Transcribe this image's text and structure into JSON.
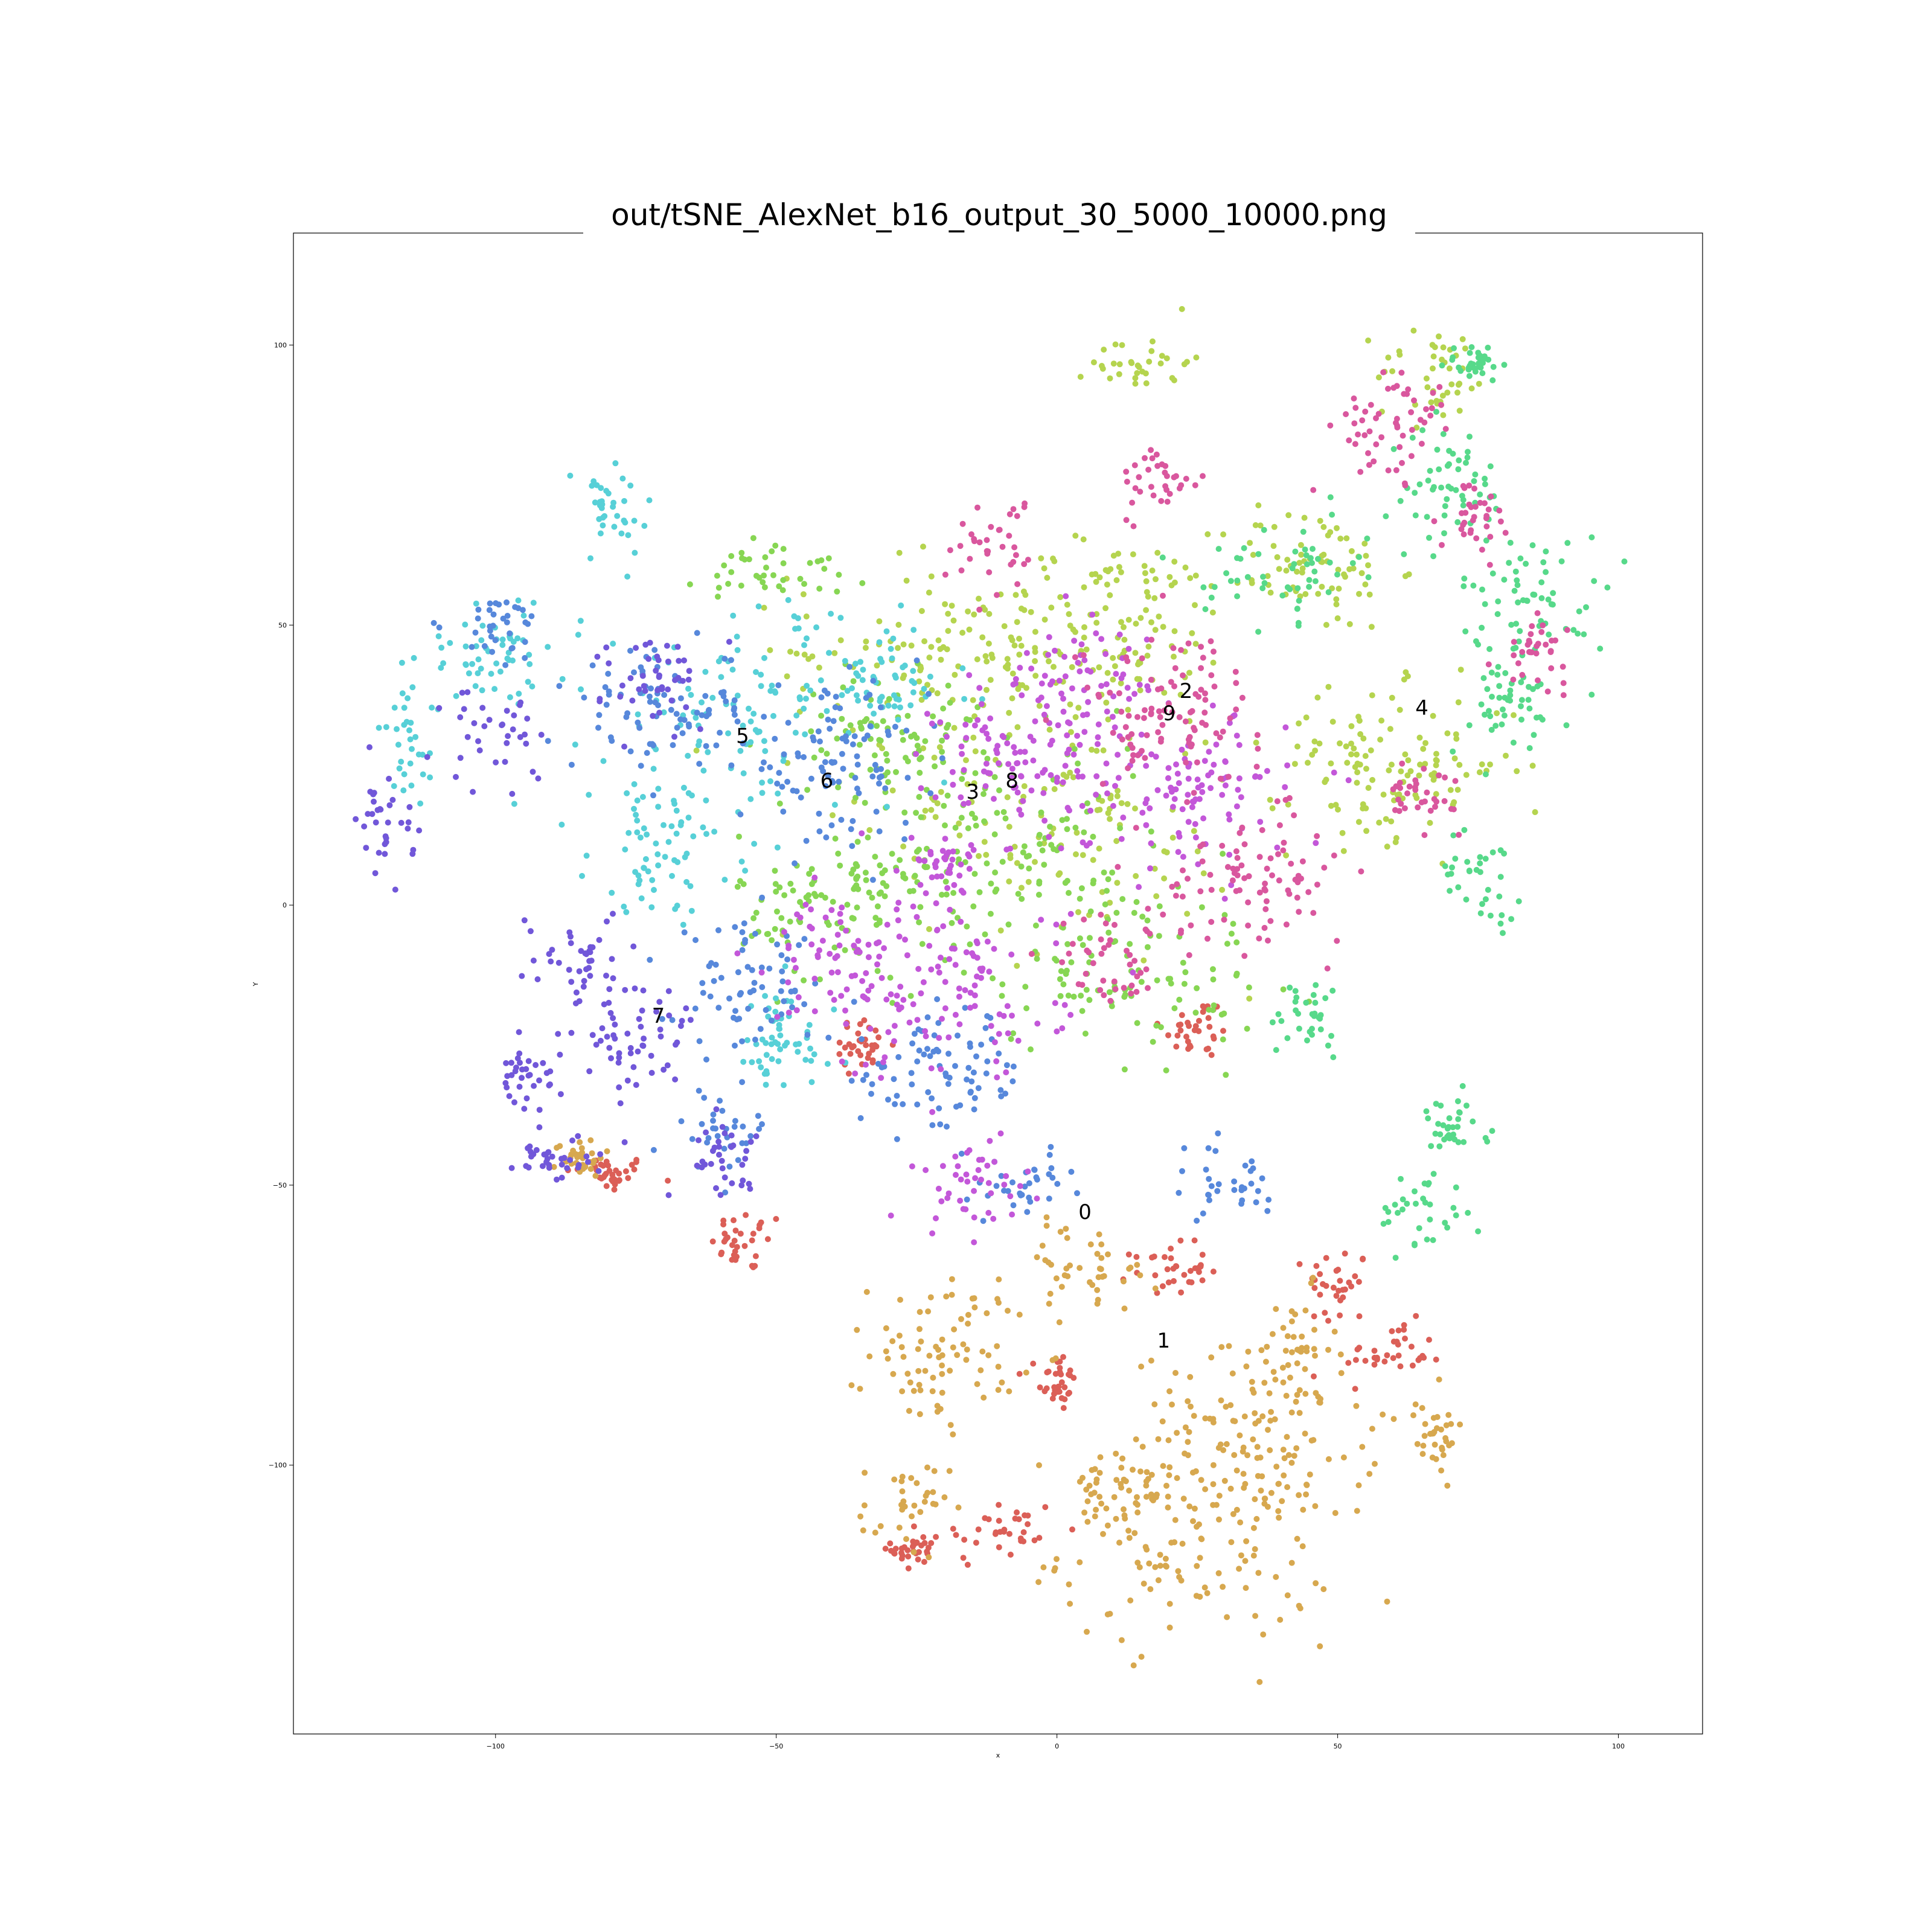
{
  "chart_data": {
    "type": "scatter",
    "title": "out/tSNE_AlexNet_b16_output_30_5000_10000.png",
    "xlabel": "x",
    "ylabel": "Y",
    "xlim": [
      -136,
      115
    ],
    "ylim": [
      -148,
      120
    ],
    "xticks": [
      -100,
      -50,
      0,
      50,
      100
    ],
    "yticks": [
      -100,
      -50,
      0,
      50,
      100
    ],
    "xtick_labels": [
      "−100",
      "−50",
      "0",
      "50",
      "100"
    ],
    "ytick_labels": [
      "−100",
      "−50",
      "0",
      "50",
      "100"
    ],
    "grid": false,
    "legend": "none",
    "classes": [
      {
        "name": "0",
        "color": "#db5f57",
        "label_pos": [
          5,
          -55
        ],
        "clusters": [
          [
            -80,
            -48,
            7,
            3
          ],
          [
            -55,
            -60,
            6,
            5
          ],
          [
            0,
            -85,
            3,
            5
          ],
          [
            -10,
            -112,
            10,
            6
          ],
          [
            25,
            -22,
            6,
            5
          ],
          [
            50,
            -68,
            5,
            7
          ],
          [
            60,
            -80,
            8,
            5
          ],
          [
            20,
            -65,
            6,
            4
          ],
          [
            -25,
            -115,
            4,
            4
          ],
          [
            -35,
            -25,
            5,
            4
          ]
        ]
      },
      {
        "name": "1",
        "color": "#d7a84f",
        "label_pos": [
          19,
          -78
        ],
        "clusters": [
          [
            25,
            -115,
            22,
            15
          ],
          [
            35,
            -95,
            20,
            14
          ],
          [
            -20,
            -80,
            12,
            12
          ],
          [
            -27,
            -108,
            7,
            8
          ],
          [
            10,
            -105,
            10,
            8
          ],
          [
            5,
            -65,
            12,
            7
          ],
          [
            42,
            -80,
            7,
            10
          ],
          [
            67,
            -95,
            5,
            6
          ],
          [
            -85,
            -45,
            4,
            3
          ]
        ]
      },
      {
        "name": "2",
        "color": "#b5d44f",
        "label_pos": [
          23,
          38
        ],
        "clusters": [
          [
            15,
            97,
            8,
            5
          ],
          [
            68,
            95,
            10,
            8
          ],
          [
            45,
            60,
            14,
            10
          ],
          [
            10,
            50,
            20,
            14
          ],
          [
            -20,
            45,
            25,
            15
          ],
          [
            60,
            25,
            20,
            12
          ],
          [
            0,
            15,
            30,
            20
          ]
        ]
      },
      {
        "name": "3",
        "color": "#87d653",
        "label_pos": [
          -15,
          20
        ],
        "clusters": [
          [
            -10,
            10,
            25,
            18
          ],
          [
            -30,
            30,
            15,
            10
          ],
          [
            10,
            -10,
            25,
            15
          ],
          [
            -40,
            0,
            15,
            12
          ],
          [
            -50,
            60,
            12,
            6
          ]
        ]
      },
      {
        "name": "4",
        "color": "#57d98a",
        "label_pos": [
          65,
          35
        ],
        "clusters": [
          [
            85,
            55,
            12,
            10
          ],
          [
            80,
            35,
            10,
            8
          ],
          [
            70,
            75,
            10,
            10
          ],
          [
            75,
            5,
            7,
            7
          ],
          [
            75,
            97,
            5,
            3
          ],
          [
            65,
            -55,
            7,
            7
          ],
          [
            45,
            -20,
            7,
            7
          ],
          [
            40,
            60,
            12,
            8
          ],
          [
            70,
            -40,
            6,
            5
          ]
        ]
      },
      {
        "name": "5",
        "color": "#57d0d7",
        "label_pos": [
          -56,
          30
        ],
        "clusters": [
          [
            -80,
            70,
            8,
            8
          ],
          [
            -55,
            35,
            25,
            18
          ],
          [
            -100,
            45,
            12,
            8
          ],
          [
            -70,
            10,
            12,
            10
          ],
          [
            -50,
            -25,
            10,
            10
          ],
          [
            -30,
            40,
            10,
            8
          ],
          [
            -115,
            30,
            5,
            10
          ]
        ]
      },
      {
        "name": "6",
        "color": "#5788db",
        "label_pos": [
          -41,
          22
        ],
        "clusters": [
          [
            -40,
            25,
            15,
            12
          ],
          [
            -70,
            35,
            15,
            10
          ],
          [
            -55,
            -15,
            12,
            10
          ],
          [
            -20,
            -30,
            15,
            10
          ],
          [
            -60,
            -40,
            8,
            6
          ],
          [
            -100,
            50,
            8,
            5
          ],
          [
            30,
            -50,
            10,
            6
          ],
          [
            -5,
            -50,
            6,
            5
          ]
        ]
      },
      {
        "name": "7",
        "color": "#7157d9",
        "label_pos": [
          -71,
          -20
        ],
        "clusters": [
          [
            -120,
            15,
            5,
            8
          ],
          [
            -100,
            30,
            8,
            8
          ],
          [
            -95,
            -30,
            5,
            5
          ],
          [
            -75,
            -25,
            10,
            10
          ],
          [
            -60,
            -45,
            7,
            5
          ],
          [
            -85,
            -10,
            10,
            8
          ],
          [
            -90,
            -45,
            6,
            4
          ],
          [
            -70,
            40,
            10,
            8
          ]
        ]
      },
      {
        "name": "8",
        "color": "#c357d9",
        "label_pos": [
          -8,
          22
        ],
        "clusters": [
          [
            -5,
            25,
            15,
            15
          ],
          [
            -20,
            -15,
            20,
            15
          ],
          [
            -15,
            -50,
            10,
            8
          ],
          [
            5,
            40,
            10,
            10
          ],
          [
            25,
            20,
            15,
            12
          ],
          [
            -40,
            -10,
            10,
            10
          ],
          [
            -20,
            8,
            6,
            5
          ]
        ]
      },
      {
        "name": "9",
        "color": "#d9579e",
        "label_pos": [
          20,
          34
        ],
        "clusters": [
          [
            18,
            75,
            6,
            6
          ],
          [
            60,
            85,
            10,
            10
          ],
          [
            20,
            35,
            15,
            12
          ],
          [
            35,
            5,
            15,
            10
          ],
          [
            -10,
            65,
            8,
            8
          ],
          [
            75,
            70,
            6,
            6
          ],
          [
            85,
            45,
            5,
            5
          ],
          [
            65,
            20,
            6,
            5
          ],
          [
            10,
            -10,
            10,
            8
          ]
        ]
      }
    ]
  }
}
